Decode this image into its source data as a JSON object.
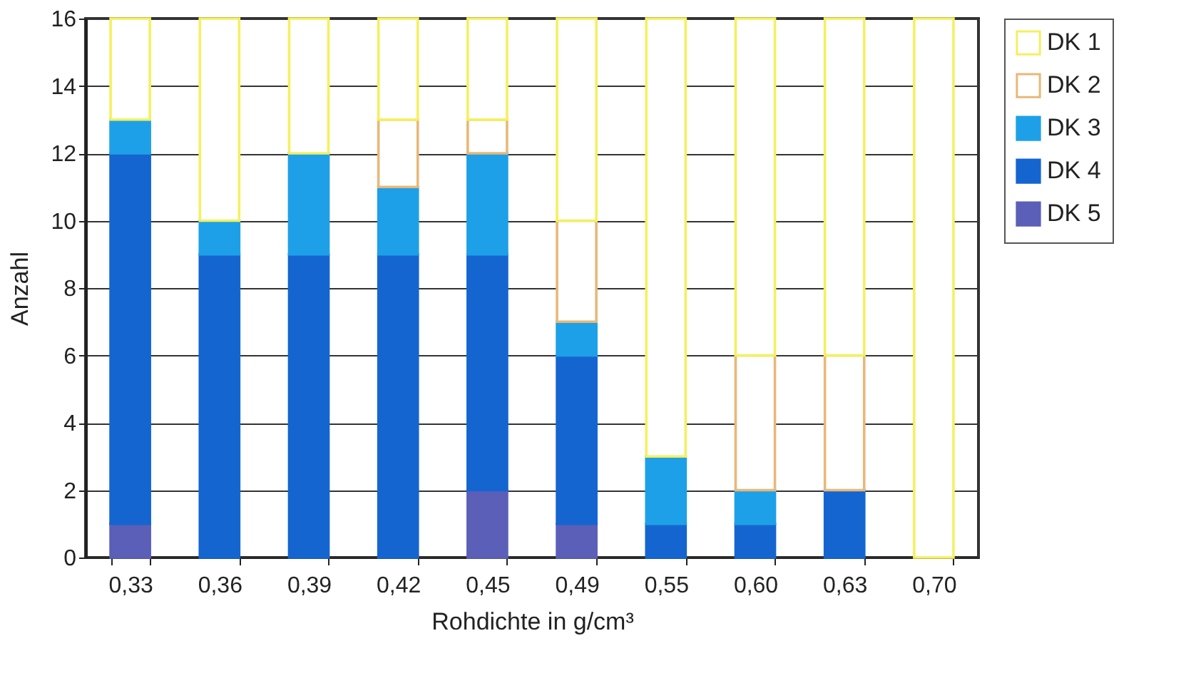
{
  "chart_data": {
    "type": "bar",
    "stacked": true,
    "xlabel": "Rohdichte in g/cm³",
    "ylabel": "Anzahl",
    "categories": [
      "0,33",
      "0,36",
      "0,39",
      "0,42",
      "0,45",
      "0,49",
      "0,55",
      "0,60",
      "0,63",
      "0,70"
    ],
    "series": [
      {
        "name": "DK 5",
        "color": "#5b5fb8",
        "values": [
          1,
          0,
          0,
          0,
          2,
          1,
          0,
          0,
          0,
          0
        ]
      },
      {
        "name": "DK 4",
        "color": "#1565d0",
        "values": [
          11,
          9,
          9,
          9,
          7,
          5,
          1,
          1,
          2,
          0
        ]
      },
      {
        "name": "DK 3",
        "color": "#1ea0e8",
        "values": [
          1,
          1,
          3,
          2,
          3,
          1,
          2,
          1,
          0,
          0
        ]
      },
      {
        "name": "DK 2",
        "color": "#e8b878",
        "values": [
          0,
          0,
          0,
          2,
          1,
          3,
          0,
          4,
          4,
          0
        ]
      },
      {
        "name": "DK 1",
        "color": "#f4f060",
        "values": [
          3,
          6,
          4,
          3,
          3,
          6,
          13,
          10,
          10,
          16
        ]
      }
    ],
    "ylim": [
      0,
      16
    ],
    "yticks": [
      0,
      2,
      4,
      6,
      8,
      10,
      12,
      14,
      16
    ],
    "grid": "y",
    "legend": "right"
  }
}
